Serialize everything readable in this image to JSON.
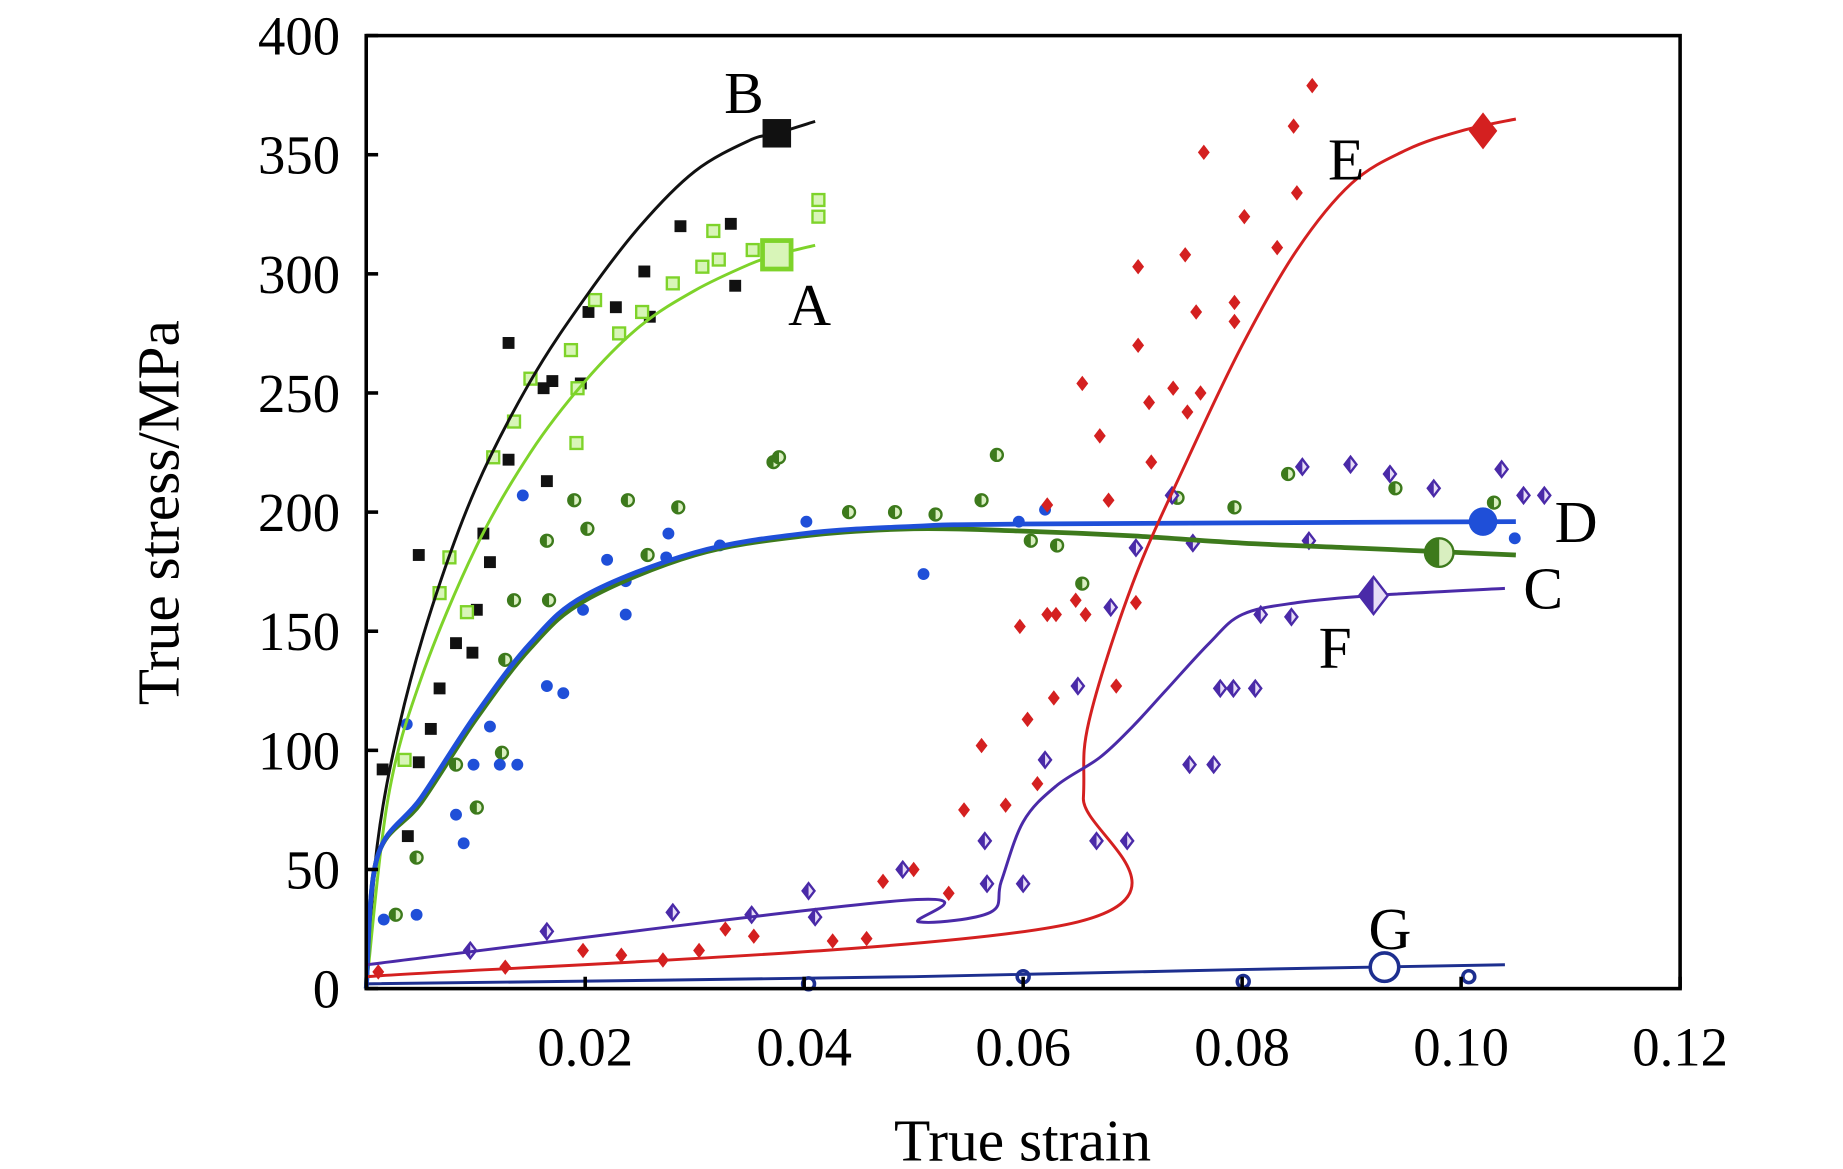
{
  "chart_data": {
    "type": "line",
    "title": "",
    "xlabel": "True strain",
    "ylabel": "True stress/MPa",
    "xlim": [
      0,
      0.12
    ],
    "ylim": [
      0,
      400
    ],
    "xticks": [
      0.02,
      0.04,
      0.06,
      0.08,
      0.1,
      0.12
    ],
    "xtick_labels": [
      "0.02",
      "0.04",
      "0.06",
      "0.08",
      "0.10",
      "0.12"
    ],
    "yticks": [
      0,
      50,
      100,
      150,
      200,
      250,
      300,
      350,
      400
    ],
    "ytick_labels": [
      "0",
      "50",
      "100",
      "150",
      "200",
      "250",
      "300",
      "350",
      "400"
    ],
    "grid": false,
    "series": [
      {
        "name": "B",
        "color": "#111111",
        "marker": "square",
        "end_marker": [
          0.0375,
          359
        ],
        "label_at": [
          0.0345,
          376
        ],
        "fit": [
          [
            0,
            0
          ],
          [
            0.001,
            60
          ],
          [
            0.003,
            110
          ],
          [
            0.006,
            160
          ],
          [
            0.01,
            210
          ],
          [
            0.015,
            255
          ],
          [
            0.02,
            290
          ],
          [
            0.025,
            320
          ],
          [
            0.03,
            343
          ],
          [
            0.035,
            356
          ],
          [
            0.0375,
            359
          ],
          [
            0.041,
            364
          ]
        ],
        "points": [
          [
            0.0015,
            92
          ],
          [
            0.0038,
            64
          ],
          [
            0.0048,
            182
          ],
          [
            0.0048,
            95
          ],
          [
            0.0059,
            109
          ],
          [
            0.0067,
            126
          ],
          [
            0.0082,
            145
          ],
          [
            0.0097,
            141
          ],
          [
            0.0101,
            159
          ],
          [
            0.0107,
            191
          ],
          [
            0.0113,
            179
          ],
          [
            0.013,
            271
          ],
          [
            0.013,
            222
          ],
          [
            0.0165,
            213
          ],
          [
            0.0162,
            252
          ],
          [
            0.017,
            255
          ],
          [
            0.0196,
            254
          ],
          [
            0.0203,
            284
          ],
          [
            0.0228,
            286
          ],
          [
            0.0259,
            282
          ],
          [
            0.0254,
            301
          ],
          [
            0.0287,
            320
          ],
          [
            0.0333,
            321
          ],
          [
            0.0337,
            295
          ]
        ]
      },
      {
        "name": "A",
        "color": "#7ed32a",
        "marker": "open-square",
        "end_marker": [
          0.0375,
          308
        ],
        "label_at": [
          0.0405,
          287
        ],
        "fit": [
          [
            0,
            0
          ],
          [
            0.002,
            80
          ],
          [
            0.005,
            130
          ],
          [
            0.01,
            185
          ],
          [
            0.015,
            225
          ],
          [
            0.02,
            255
          ],
          [
            0.025,
            278
          ],
          [
            0.03,
            293
          ],
          [
            0.035,
            304
          ],
          [
            0.0375,
            308
          ],
          [
            0.041,
            312
          ]
        ],
        "points": [
          [
            0.0116,
            223
          ],
          [
            0.0135,
            238
          ],
          [
            0.015,
            256
          ],
          [
            0.0187,
            268
          ],
          [
            0.0193,
            252
          ],
          [
            0.0209,
            289
          ],
          [
            0.0231,
            275
          ],
          [
            0.0252,
            284
          ],
          [
            0.028,
            296
          ],
          [
            0.0307,
            303
          ],
          [
            0.0317,
            318
          ],
          [
            0.0322,
            306
          ],
          [
            0.0353,
            310
          ],
          [
            0.0413,
            331
          ],
          [
            0.0413,
            324
          ],
          [
            0.0076,
            181
          ],
          [
            0.0067,
            166
          ],
          [
            0.0092,
            158
          ],
          [
            0.0035,
            96
          ],
          [
            0.0192,
            229
          ]
        ]
      },
      {
        "name": "C",
        "color": "#3d7a1c",
        "marker": "half-circle",
        "end_marker": [
          0.098,
          183
        ],
        "label_at": [
          0.1075,
          168
        ],
        "fit": [
          [
            0,
            0
          ],
          [
            0.001,
            55
          ],
          [
            0.005,
            78
          ],
          [
            0.01,
            113
          ],
          [
            0.015,
            143
          ],
          [
            0.02,
            163
          ],
          [
            0.03,
            182
          ],
          [
            0.04,
            190
          ],
          [
            0.05,
            193
          ],
          [
            0.06,
            192
          ],
          [
            0.07,
            190
          ],
          [
            0.08,
            187
          ],
          [
            0.09,
            185
          ],
          [
            0.1,
            183
          ],
          [
            0.105,
            182
          ]
        ],
        "points": [
          [
            0.0027,
            31
          ],
          [
            0.0046,
            55
          ],
          [
            0.0082,
            94
          ],
          [
            0.0101,
            76
          ],
          [
            0.0124,
            99
          ],
          [
            0.0127,
            138
          ],
          [
            0.0135,
            163
          ],
          [
            0.0167,
            163
          ],
          [
            0.0165,
            188
          ],
          [
            0.019,
            205
          ],
          [
            0.0202,
            193
          ],
          [
            0.0239,
            205
          ],
          [
            0.0257,
            182
          ],
          [
            0.0285,
            202
          ],
          [
            0.0372,
            221
          ],
          [
            0.0377,
            223
          ],
          [
            0.0441,
            200
          ],
          [
            0.0483,
            200
          ],
          [
            0.052,
            199
          ],
          [
            0.0562,
            205
          ],
          [
            0.0576,
            224
          ],
          [
            0.0607,
            188
          ],
          [
            0.0631,
            186
          ],
          [
            0.0654,
            170
          ],
          [
            0.0741,
            206
          ],
          [
            0.0793,
            202
          ],
          [
            0.0842,
            216
          ],
          [
            0.094,
            210
          ],
          [
            0.103,
            204
          ]
        ]
      },
      {
        "name": "D",
        "color": "#1f4fd8",
        "marker": "circle",
        "end_marker": [
          0.102,
          196
        ],
        "label_at": [
          0.1105,
          196
        ],
        "fit": [
          [
            0,
            0
          ],
          [
            0.001,
            55
          ],
          [
            0.005,
            80
          ],
          [
            0.01,
            115
          ],
          [
            0.015,
            145
          ],
          [
            0.02,
            165
          ],
          [
            0.03,
            183
          ],
          [
            0.04,
            191
          ],
          [
            0.05,
            194
          ],
          [
            0.06,
            195
          ],
          [
            0.105,
            196
          ]
        ],
        "points": [
          [
            0.0016,
            29
          ],
          [
            0.0046,
            31
          ],
          [
            0.0037,
            111
          ],
          [
            0.0082,
            73
          ],
          [
            0.0089,
            61
          ],
          [
            0.0098,
            94
          ],
          [
            0.0113,
            110
          ],
          [
            0.0122,
            94
          ],
          [
            0.0138,
            94
          ],
          [
            0.0143,
            207
          ],
          [
            0.0165,
            127
          ],
          [
            0.018,
            124
          ],
          [
            0.0198,
            159
          ],
          [
            0.022,
            180
          ],
          [
            0.0237,
            157
          ],
          [
            0.0237,
            171
          ],
          [
            0.0276,
            191
          ],
          [
            0.0274,
            181
          ],
          [
            0.0323,
            186
          ],
          [
            0.0402,
            196
          ],
          [
            0.0509,
            174
          ],
          [
            0.0596,
            196
          ],
          [
            0.062,
            201
          ],
          [
            0.1049,
            189
          ]
        ]
      },
      {
        "name": "E",
        "color": "#d42020",
        "marker": "diamond",
        "end_marker": [
          0.102,
          360
        ],
        "label_at": [
          0.0895,
          348
        ],
        "fit": [
          [
            0,
            5
          ],
          [
            0.065,
            28
          ],
          [
            0.0655,
            80
          ],
          [
            0.066,
            112
          ],
          [
            0.07,
            170
          ],
          [
            0.075,
            222
          ],
          [
            0.08,
            270
          ],
          [
            0.085,
            310
          ],
          [
            0.09,
            338
          ],
          [
            0.095,
            352
          ],
          [
            0.1,
            360
          ],
          [
            0.105,
            365
          ]
        ],
        "points": [
          [
            0.0011,
            7
          ],
          [
            0.0127,
            9
          ],
          [
            0.0198,
            16
          ],
          [
            0.0233,
            14
          ],
          [
            0.0271,
            12
          ],
          [
            0.0304,
            16
          ],
          [
            0.0328,
            25
          ],
          [
            0.0354,
            22
          ],
          [
            0.0426,
            20
          ],
          [
            0.0457,
            21
          ],
          [
            0.0472,
            45
          ],
          [
            0.05,
            50
          ],
          [
            0.0532,
            40
          ],
          [
            0.0546,
            75
          ],
          [
            0.0562,
            102
          ],
          [
            0.0584,
            77
          ],
          [
            0.0597,
            152
          ],
          [
            0.0604,
            113
          ],
          [
            0.0613,
            86
          ],
          [
            0.0622,
            203
          ],
          [
            0.0622,
            157
          ],
          [
            0.063,
            157
          ],
          [
            0.0628,
            122
          ],
          [
            0.0648,
            163
          ],
          [
            0.0654,
            254
          ],
          [
            0.0657,
            157
          ],
          [
            0.067,
            232
          ],
          [
            0.0678,
            205
          ],
          [
            0.0685,
            127
          ],
          [
            0.0703,
            162
          ],
          [
            0.0705,
            303
          ],
          [
            0.0705,
            270
          ],
          [
            0.0715,
            246
          ],
          [
            0.0717,
            221
          ],
          [
            0.0737,
            252
          ],
          [
            0.0748,
            308
          ],
          [
            0.075,
            242
          ],
          [
            0.0758,
            284
          ],
          [
            0.0762,
            250
          ],
          [
            0.0765,
            351
          ],
          [
            0.0793,
            288
          ],
          [
            0.0793,
            280
          ],
          [
            0.0802,
            324
          ],
          [
            0.0832,
            311
          ],
          [
            0.0847,
            362
          ],
          [
            0.085,
            334
          ],
          [
            0.0864,
            379
          ]
        ]
      },
      {
        "name": "F",
        "color": "#4a2aa8",
        "marker": "half-diamond",
        "end_marker": [
          0.092,
          165
        ],
        "label_at": [
          0.0885,
          143
        ],
        "fit": [
          [
            0,
            10
          ],
          [
            0.049,
            37
          ],
          [
            0.0505,
            28
          ],
          [
            0.057,
            32
          ],
          [
            0.058,
            45
          ],
          [
            0.06,
            70
          ],
          [
            0.063,
            85
          ],
          [
            0.067,
            97
          ],
          [
            0.07,
            110
          ],
          [
            0.073,
            125
          ],
          [
            0.077,
            145
          ],
          [
            0.08,
            157
          ],
          [
            0.085,
            162
          ],
          [
            0.092,
            165
          ],
          [
            0.104,
            168
          ]
        ],
        "points": [
          [
            0.0404,
            41
          ],
          [
            0.041,
            30
          ],
          [
            0.049,
            50
          ],
          [
            0.0565,
            62
          ],
          [
            0.0567,
            44
          ],
          [
            0.06,
            44
          ],
          [
            0.062,
            96
          ],
          [
            0.065,
            127
          ],
          [
            0.0667,
            62
          ],
          [
            0.0695,
            62
          ],
          [
            0.068,
            160
          ],
          [
            0.0703,
            185
          ],
          [
            0.0736,
            207
          ],
          [
            0.0755,
            187
          ],
          [
            0.0752,
            94
          ],
          [
            0.0774,
            94
          ],
          [
            0.078,
            126
          ],
          [
            0.0792,
            126
          ],
          [
            0.0812,
            126
          ],
          [
            0.0817,
            157
          ],
          [
            0.0845,
            156
          ],
          [
            0.0855,
            219
          ],
          [
            0.0861,
            188
          ],
          [
            0.0899,
            220
          ],
          [
            0.0935,
            216
          ],
          [
            0.0975,
            210
          ],
          [
            0.1037,
            218
          ],
          [
            0.1057,
            207
          ],
          [
            0.1076,
            207
          ],
          [
            0.0095,
            16
          ],
          [
            0.0165,
            24
          ],
          [
            0.028,
            32
          ],
          [
            0.0352,
            31
          ]
        ]
      },
      {
        "name": "G",
        "color": "#1d2f8f",
        "marker": "open-circle",
        "end_marker": [
          0.093,
          9
        ],
        "label_at": [
          0.0935,
          25
        ],
        "fit": [
          [
            0,
            2
          ],
          [
            0.05,
            5
          ],
          [
            0.08,
            8
          ],
          [
            0.104,
            10
          ]
        ],
        "points": [
          [
            0.0404,
            2
          ],
          [
            0.06,
            5
          ],
          [
            0.0801,
            3
          ],
          [
            0.1007,
            5
          ]
        ]
      }
    ]
  }
}
